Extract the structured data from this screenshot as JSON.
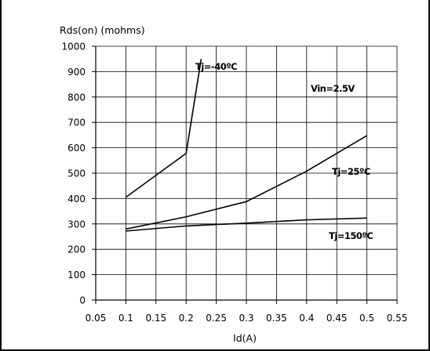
{
  "chart_data": {
    "type": "line",
    "title": "",
    "ylabel": "Rds(on) (mohms)",
    "xlabel": "Id(A)",
    "xlim": [
      0.05,
      0.55
    ],
    "ylim": [
      0,
      1000
    ],
    "x_ticks": [
      "0.05",
      "0.1",
      "0.15",
      "0.2",
      "0.25",
      "0.3",
      "0.35",
      "0.4",
      "0.45",
      "0.5",
      "0.55"
    ],
    "y_ticks": [
      "0",
      "100",
      "200",
      "300",
      "400",
      "500",
      "600",
      "700",
      "800",
      "900",
      "1000"
    ],
    "grid": true,
    "series": [
      {
        "name": "Tj=-40ºC",
        "x": [
          0.1,
          0.2,
          0.225
        ],
        "y": [
          405,
          578,
          950
        ]
      },
      {
        "name": "Tj=25ºC",
        "x": [
          0.1,
          0.2,
          0.3,
          0.4,
          0.5
        ],
        "y": [
          280,
          328,
          388,
          508,
          648
        ]
      },
      {
        "name": "Tj=150ºC",
        "x": [
          0.1,
          0.2,
          0.3,
          0.4,
          0.5
        ],
        "y": [
          272,
          292,
          303,
          316,
          323
        ]
      }
    ],
    "annotations": [
      {
        "text": "Tj=-40ºC",
        "series": 0
      },
      {
        "text": "Vin=2.5V"
      },
      {
        "text": "Tj=25ºC",
        "series": 1
      },
      {
        "text": "Tj=150ºC",
        "series": 2
      }
    ]
  }
}
